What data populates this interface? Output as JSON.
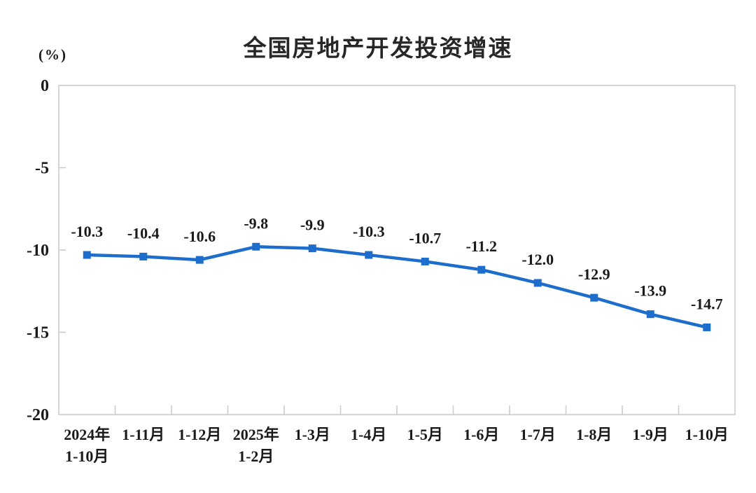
{
  "chart_data": {
    "type": "line",
    "title": "全国房地产开发投资增速",
    "ylabel": "(%)",
    "categories": [
      "2024年\n1-10月",
      "1-11月",
      "1-12月",
      "2025年\n1-2月",
      "1-3月",
      "1-4月",
      "1-5月",
      "1-6月",
      "1-7月",
      "1-8月",
      "1-9月",
      "1-10月"
    ],
    "values": [
      -10.3,
      -10.4,
      -10.6,
      -9.8,
      -9.9,
      -10.3,
      -10.7,
      -11.2,
      -12.0,
      -12.9,
      -13.9,
      -14.7
    ],
    "data_labels": [
      "-10.3",
      "-10.4",
      "-10.6",
      "-9.8",
      "-9.9",
      "-10.3",
      "-10.7",
      "-11.2",
      "-12.0",
      "-12.9",
      "-13.9",
      "-14.7"
    ],
    "ylim": [
      -20,
      0
    ],
    "yticks": [
      0,
      -5,
      -10,
      -15,
      -20
    ],
    "grid": false,
    "legend": "none",
    "marker": "square",
    "line_color": "#1d6dcc",
    "axis_color": "#c9c9c9",
    "label_color": "#1a1a1a",
    "background": "#ffffff"
  }
}
